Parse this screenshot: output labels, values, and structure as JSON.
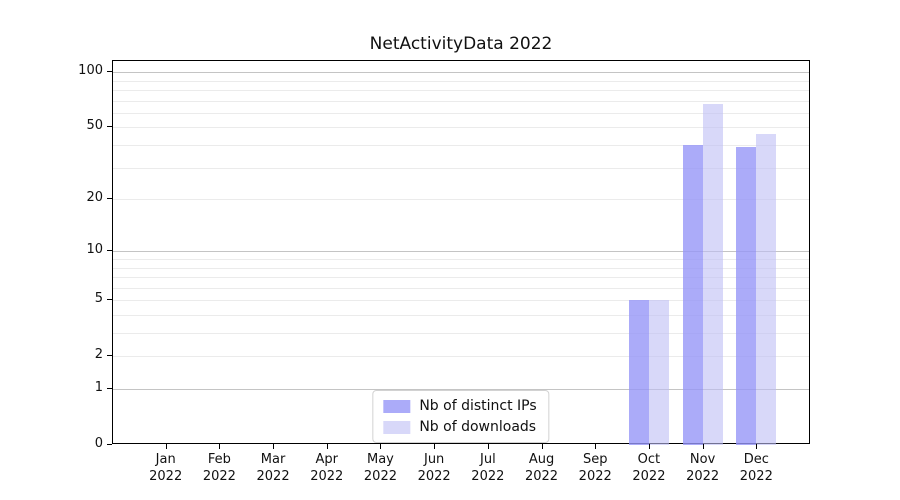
{
  "chart_data": {
    "type": "bar",
    "title": "NetActivityData 2022",
    "categories": [
      "Jan",
      "Feb",
      "Mar",
      "Apr",
      "May",
      "Jun",
      "Jul",
      "Aug",
      "Sep",
      "Oct",
      "Nov",
      "Dec"
    ],
    "year_label": "2022",
    "series": [
      {
        "name": "Nb of distinct IPs",
        "color": "rgba(150,150,247,0.8)",
        "values": [
          0,
          0,
          0,
          0,
          0,
          0,
          0,
          0,
          0,
          5,
          40,
          39
        ]
      },
      {
        "name": "Nb of downloads",
        "color": "rgba(190,190,245,0.6)",
        "values": [
          0,
          0,
          0,
          0,
          0,
          0,
          0,
          0,
          0,
          5,
          67,
          46
        ]
      }
    ],
    "yticks": [
      0,
      1,
      2,
      5,
      10,
      20,
      50,
      100
    ],
    "scale": "log1p",
    "ylim": [
      0,
      115
    ],
    "grid": "horizontal-minor-log",
    "legend_position": "lower center"
  }
}
